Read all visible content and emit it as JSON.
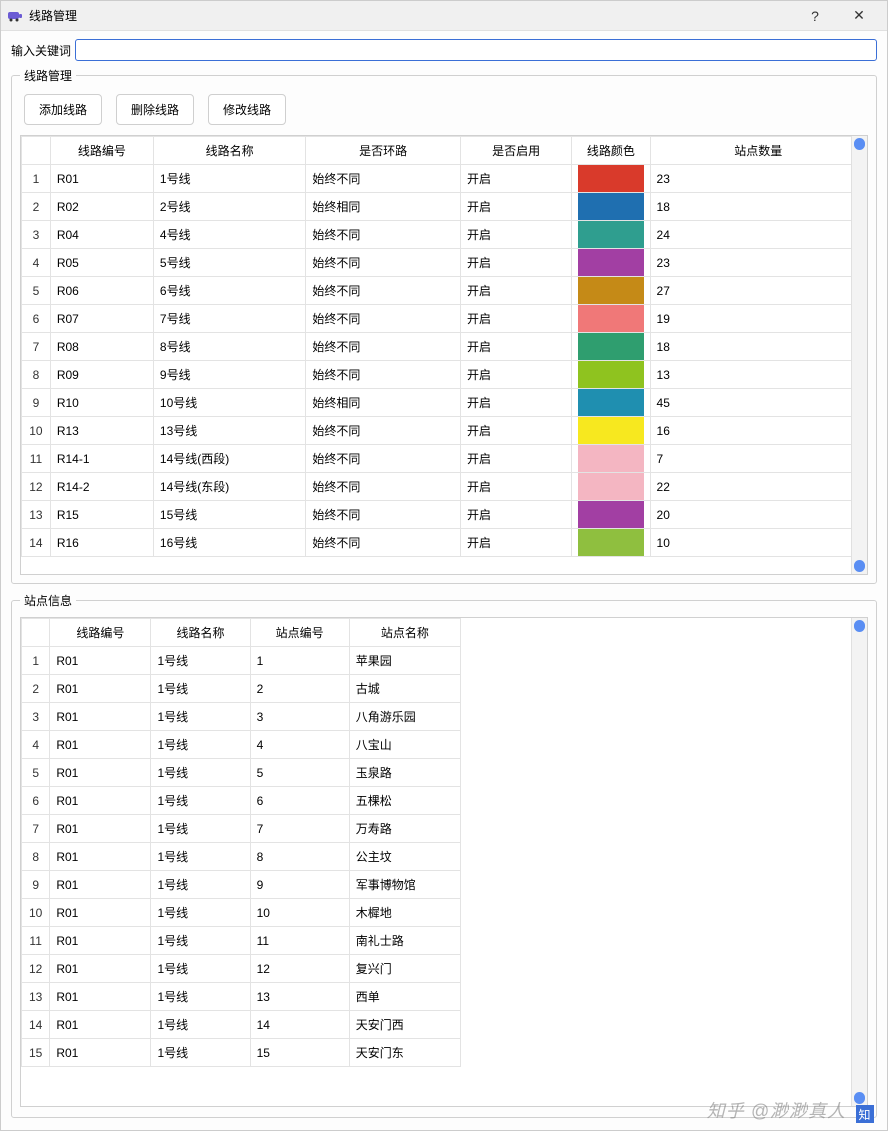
{
  "window": {
    "title": "线路管理",
    "help_glyph": "?",
    "close_glyph": "✕"
  },
  "search": {
    "label": "输入关键词",
    "value": ""
  },
  "routes_group": {
    "legend": "线路管理",
    "buttons": {
      "add": "添加线路",
      "delete": "删除线路",
      "edit": "修改线路"
    },
    "columns": [
      "线路编号",
      "线路名称",
      "是否环路",
      "是否启用",
      "线路颜色",
      "站点数量"
    ],
    "rows": [
      {
        "no": "R01",
        "name": "1号线",
        "loop": "始终不同",
        "enabled": "开启",
        "color": "#d93a2b",
        "stations": "23"
      },
      {
        "no": "R02",
        "name": "2号线",
        "loop": "始终相同",
        "enabled": "开启",
        "color": "#1f6fb0",
        "stations": "18"
      },
      {
        "no": "R04",
        "name": "4号线",
        "loop": "始终不同",
        "enabled": "开启",
        "color": "#2f9e8f",
        "stations": "24"
      },
      {
        "no": "R05",
        "name": "5号线",
        "loop": "始终不同",
        "enabled": "开启",
        "color": "#a23fa3",
        "stations": "23"
      },
      {
        "no": "R06",
        "name": "6号线",
        "loop": "始终不同",
        "enabled": "开启",
        "color": "#c58a17",
        "stations": "27"
      },
      {
        "no": "R07",
        "name": "7号线",
        "loop": "始终不同",
        "enabled": "开启",
        "color": "#f07878",
        "stations": "19"
      },
      {
        "no": "R08",
        "name": "8号线",
        "loop": "始终不同",
        "enabled": "开启",
        "color": "#2f9e6f",
        "stations": "18"
      },
      {
        "no": "R09",
        "name": "9号线",
        "loop": "始终不同",
        "enabled": "开启",
        "color": "#8fc31f",
        "stations": "13"
      },
      {
        "no": "R10",
        "name": "10号线",
        "loop": "始终相同",
        "enabled": "开启",
        "color": "#1f8fb0",
        "stations": "45"
      },
      {
        "no": "R13",
        "name": "13号线",
        "loop": "始终不同",
        "enabled": "开启",
        "color": "#f7e81f",
        "stations": "16"
      },
      {
        "no": "R14-1",
        "name": "14号线(西段)",
        "loop": "始终不同",
        "enabled": "开启",
        "color": "#f4b6c2",
        "stations": "7"
      },
      {
        "no": "R14-2",
        "name": "14号线(东段)",
        "loop": "始终不同",
        "enabled": "开启",
        "color": "#f4b6c2",
        "stations": "22"
      },
      {
        "no": "R15",
        "name": "15号线",
        "loop": "始终不同",
        "enabled": "开启",
        "color": "#a23fa3",
        "stations": "20"
      },
      {
        "no": "R16",
        "name": "16号线",
        "loop": "始终不同",
        "enabled": "开启",
        "color": "#8fbf3f",
        "stations": "10"
      }
    ],
    "scroll_thumb_color": "#5a8ef3"
  },
  "stations_group": {
    "legend": "站点信息",
    "columns": [
      "线路编号",
      "线路名称",
      "站点编号",
      "站点名称"
    ],
    "rows": [
      {
        "route_no": "R01",
        "route_name": "1号线",
        "st_no": "1",
        "st_name": "苹果园"
      },
      {
        "route_no": "R01",
        "route_name": "1号线",
        "st_no": "2",
        "st_name": "古城"
      },
      {
        "route_no": "R01",
        "route_name": "1号线",
        "st_no": "3",
        "st_name": "八角游乐园"
      },
      {
        "route_no": "R01",
        "route_name": "1号线",
        "st_no": "4",
        "st_name": "八宝山"
      },
      {
        "route_no": "R01",
        "route_name": "1号线",
        "st_no": "5",
        "st_name": "玉泉路"
      },
      {
        "route_no": "R01",
        "route_name": "1号线",
        "st_no": "6",
        "st_name": "五棵松"
      },
      {
        "route_no": "R01",
        "route_name": "1号线",
        "st_no": "7",
        "st_name": "万寿路"
      },
      {
        "route_no": "R01",
        "route_name": "1号线",
        "st_no": "8",
        "st_name": "公主坟"
      },
      {
        "route_no": "R01",
        "route_name": "1号线",
        "st_no": "9",
        "st_name": "军事博物馆"
      },
      {
        "route_no": "R01",
        "route_name": "1号线",
        "st_no": "10",
        "st_name": "木樨地"
      },
      {
        "route_no": "R01",
        "route_name": "1号线",
        "st_no": "11",
        "st_name": "南礼士路"
      },
      {
        "route_no": "R01",
        "route_name": "1号线",
        "st_no": "12",
        "st_name": "复兴门"
      },
      {
        "route_no": "R01",
        "route_name": "1号线",
        "st_no": "13",
        "st_name": "西单"
      },
      {
        "route_no": "R01",
        "route_name": "1号线",
        "st_no": "14",
        "st_name": "天安门西"
      },
      {
        "route_no": "R01",
        "route_name": "1号线",
        "st_no": "15",
        "st_name": "天安门东"
      }
    ],
    "scroll_thumb_color": "#5a8ef3"
  },
  "watermark": "知乎 @渺渺真人"
}
